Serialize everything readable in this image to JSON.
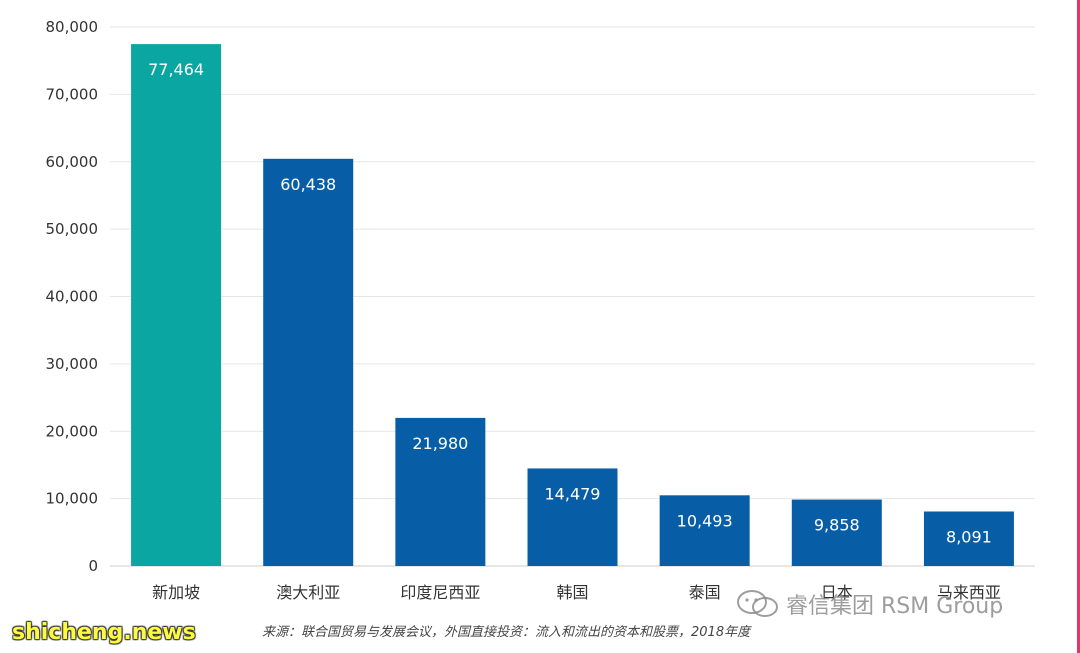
{
  "chart_data": {
    "type": "bar",
    "categories": [
      "新加坡",
      "澳大利亚",
      "印度尼西亚",
      "韩国",
      "泰国",
      "日本",
      "马来西亚"
    ],
    "values": [
      77464,
      60438,
      21980,
      14479,
      10493,
      9858,
      8091
    ],
    "value_labels": [
      "77,464",
      "60,438",
      "21,980",
      "14,479",
      "10,493",
      "9,858",
      "8,091"
    ],
    "highlight_index": 0,
    "colors": {
      "highlight": "#0aa6a2",
      "bar": "#085ea6",
      "grid": "#e6e6e6",
      "tick_text": "#333333",
      "bar_label": "#ffffff"
    },
    "ylim": [
      0,
      80000
    ],
    "yticks": [
      0,
      10000,
      20000,
      30000,
      40000,
      50000,
      60000,
      70000,
      80000
    ],
    "ytick_labels": [
      "0",
      "10,000",
      "20,000",
      "30,000",
      "40,000",
      "50,000",
      "60,000",
      "70,000",
      "80,000"
    ],
    "grid": true,
    "title": "",
    "xlabel": "",
    "ylabel": ""
  },
  "source_note": "来源：联合国贸易与发展会议，外国直接投资：流入和流出的资本和股票，2018年度",
  "watermarks": {
    "site": "shicheng.news",
    "brand": "睿信集团 RSM Group",
    "brand_icon": "wechat-icon"
  }
}
